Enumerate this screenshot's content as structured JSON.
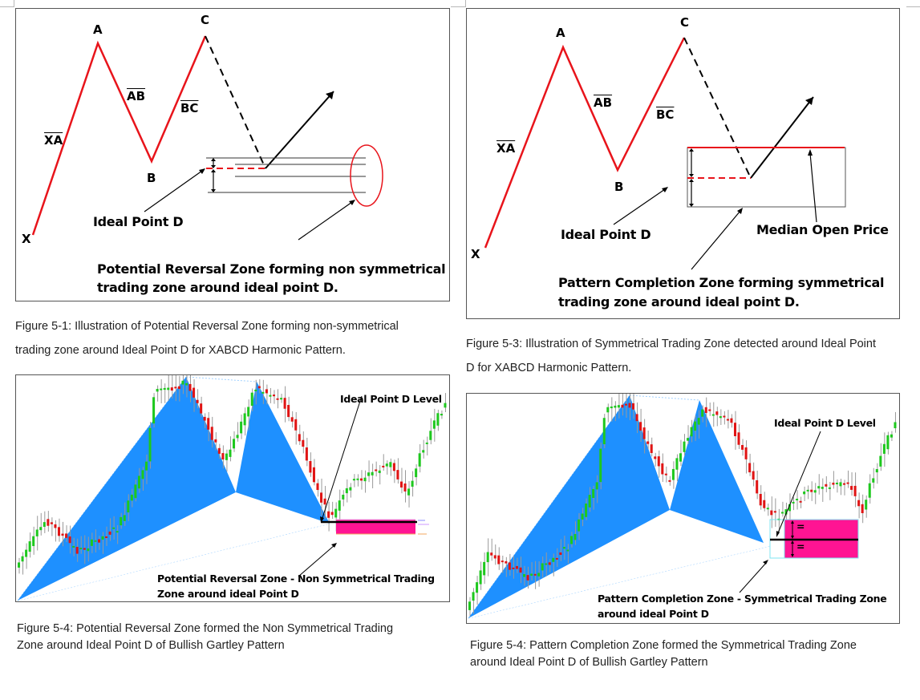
{
  "figures": {
    "fig_top_left": {
      "points": {
        "X": "X",
        "A": "A",
        "B": "B",
        "C": "C"
      },
      "legs": {
        "XA": "XA",
        "AB": "AB",
        "BC": "BC"
      },
      "ideal_point_label": "Ideal Point D",
      "description_line1": "Potential Reversal Zone forming non symmetrical",
      "description_line2": "trading zone around ideal point D.",
      "colors": {
        "pattern_line": "#e8141b",
        "ideal_dash": "#e8141b",
        "ellipse": "#e8141b",
        "arrow": "#000000",
        "zone_lines": "#333333"
      }
    },
    "fig_top_right": {
      "points": {
        "X": "X",
        "A": "A",
        "B": "B",
        "C": "C"
      },
      "legs": {
        "XA": "XA",
        "AB": "AB",
        "BC": "BC"
      },
      "ideal_point_label": "Ideal Point D",
      "median_label": "Median Open Price",
      "description_line1": "Pattern Completion Zone forming symmetrical",
      "description_line2": "trading zone around ideal point D.",
      "colors": {
        "pattern_line": "#e8141b",
        "median_line": "#e8141b",
        "box": "#555555"
      }
    },
    "fig_bottom_left": {
      "ideal_level_label": "Ideal Point D Level",
      "zone_line1": "Potential Reversal Zone - Non Symmetrical Trading",
      "zone_line2": "Zone around ideal Point D",
      "colors": {
        "pattern_fill": "#1e90ff",
        "zone_fill": "#ff1493",
        "bull": "#1ec81e",
        "bear": "#e01414"
      }
    },
    "fig_bottom_right": {
      "ideal_level_label": "Ideal Point D Level",
      "zone_line1": "Pattern Completion Zone - Symmetrical Trading Zone",
      "zone_line2": "around ideal Point D",
      "equal_sign": "=",
      "colors": {
        "pattern_fill": "#1e90ff",
        "zone_fill": "#ff1493",
        "zone_border": "#7fe6f0",
        "bull": "#1ec81e",
        "bear": "#e01414"
      }
    }
  },
  "captions": {
    "fig_5_1_line1": "Figure 5-1: Illustration of Potential Reversal Zone forming non-symmetrical",
    "fig_5_1_line2": "trading zone around Ideal Point D for XABCD Harmonic Pattern.",
    "fig_5_3_line1": "Figure 5-3: Illustration of Symmetrical Trading Zone detected around Ideal Point",
    "fig_5_3_line2": "D for XABCD Harmonic Pattern.",
    "fig_5_4a_line1": "Figure 5-4: Potential Reversal Zone formed the Non Symmetrical Trading",
    "fig_5_4a_line2": "Zone around Ideal Point D of Bullish Gartley Pattern",
    "fig_5_4b_line1": "Figure 5-4: Pattern Completion Zone formed the Symmetrical Trading Zone",
    "fig_5_4b_line2": "around Ideal Point D of Bullish Gartley Pattern"
  }
}
